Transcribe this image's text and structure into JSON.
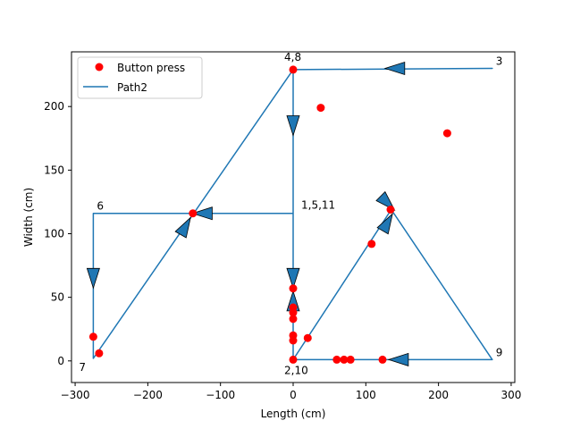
{
  "chart_data": {
    "type": "scatter",
    "xlabel": "Length (cm)",
    "ylabel": "Width (cm)",
    "xlim": [
      -305,
      305
    ],
    "ylim": [
      -17,
      243
    ],
    "xticks": [
      -300,
      -200,
      -100,
      0,
      100,
      200,
      300
    ],
    "yticks": [
      0,
      50,
      100,
      150,
      200
    ],
    "legend": {
      "placement": "top-left",
      "entries": [
        {
          "label": "Button press",
          "kind": "marker",
          "color": "#ff0000"
        },
        {
          "label": "Path2",
          "kind": "line",
          "color": "#1f77b4"
        }
      ]
    },
    "path": {
      "name": "Path2",
      "color": "#1f77b4",
      "x": [
        0,
        0,
        0,
        274,
        0,
        0,
        -138,
        -275,
        -275,
        0,
        0,
        135,
        274,
        0
      ],
      "y": [
        116,
        1,
        229,
        230,
        229,
        116,
        116,
        116,
        2,
        229,
        1,
        119,
        1,
        1
      ]
    },
    "arrows": [
      {
        "x": 0,
        "y": 185,
        "direction": "down"
      },
      {
        "x": 0,
        "y": 65,
        "direction": "down"
      },
      {
        "x": 0,
        "y": 47,
        "direction": "up"
      },
      {
        "x": 140,
        "y": 230,
        "direction": "left"
      },
      {
        "x": -125,
        "y": 116,
        "direction": "left"
      },
      {
        "x": -275,
        "y": 65,
        "direction": "down"
      },
      {
        "x": -148,
        "y": 106,
        "direction": "up-right"
      },
      {
        "x": 130,
        "y": 124,
        "direction": "down-right"
      },
      {
        "x": 130,
        "y": 109,
        "direction": "up-right"
      },
      {
        "x": 145,
        "y": 1,
        "direction": "left"
      }
    ],
    "button_presses": {
      "name": "Button press",
      "color": "#ff0000",
      "x": [
        0,
        38,
        212,
        134,
        108,
        20,
        0,
        0,
        0,
        0,
        0,
        0,
        0,
        60,
        70,
        79,
        123,
        -138,
        -275,
        -267
      ],
      "y": [
        229,
        199,
        179,
        119,
        92,
        18,
        57,
        42,
        38,
        33,
        20,
        16,
        1,
        1,
        1,
        1,
        1,
        116,
        19,
        6
      ]
    },
    "annotations": [
      {
        "text": "4,8",
        "x": 0,
        "y": 229
      },
      {
        "text": "3",
        "x": 274,
        "y": 230
      },
      {
        "text": "6",
        "x": -275,
        "y": 116
      },
      {
        "text": "1,5,11",
        "x": 0,
        "y": 116
      },
      {
        "text": "7",
        "x": -275,
        "y": 2
      },
      {
        "text": "2,10",
        "x": 0,
        "y": 1
      },
      {
        "text": "9",
        "x": 274,
        "y": 1
      }
    ]
  }
}
